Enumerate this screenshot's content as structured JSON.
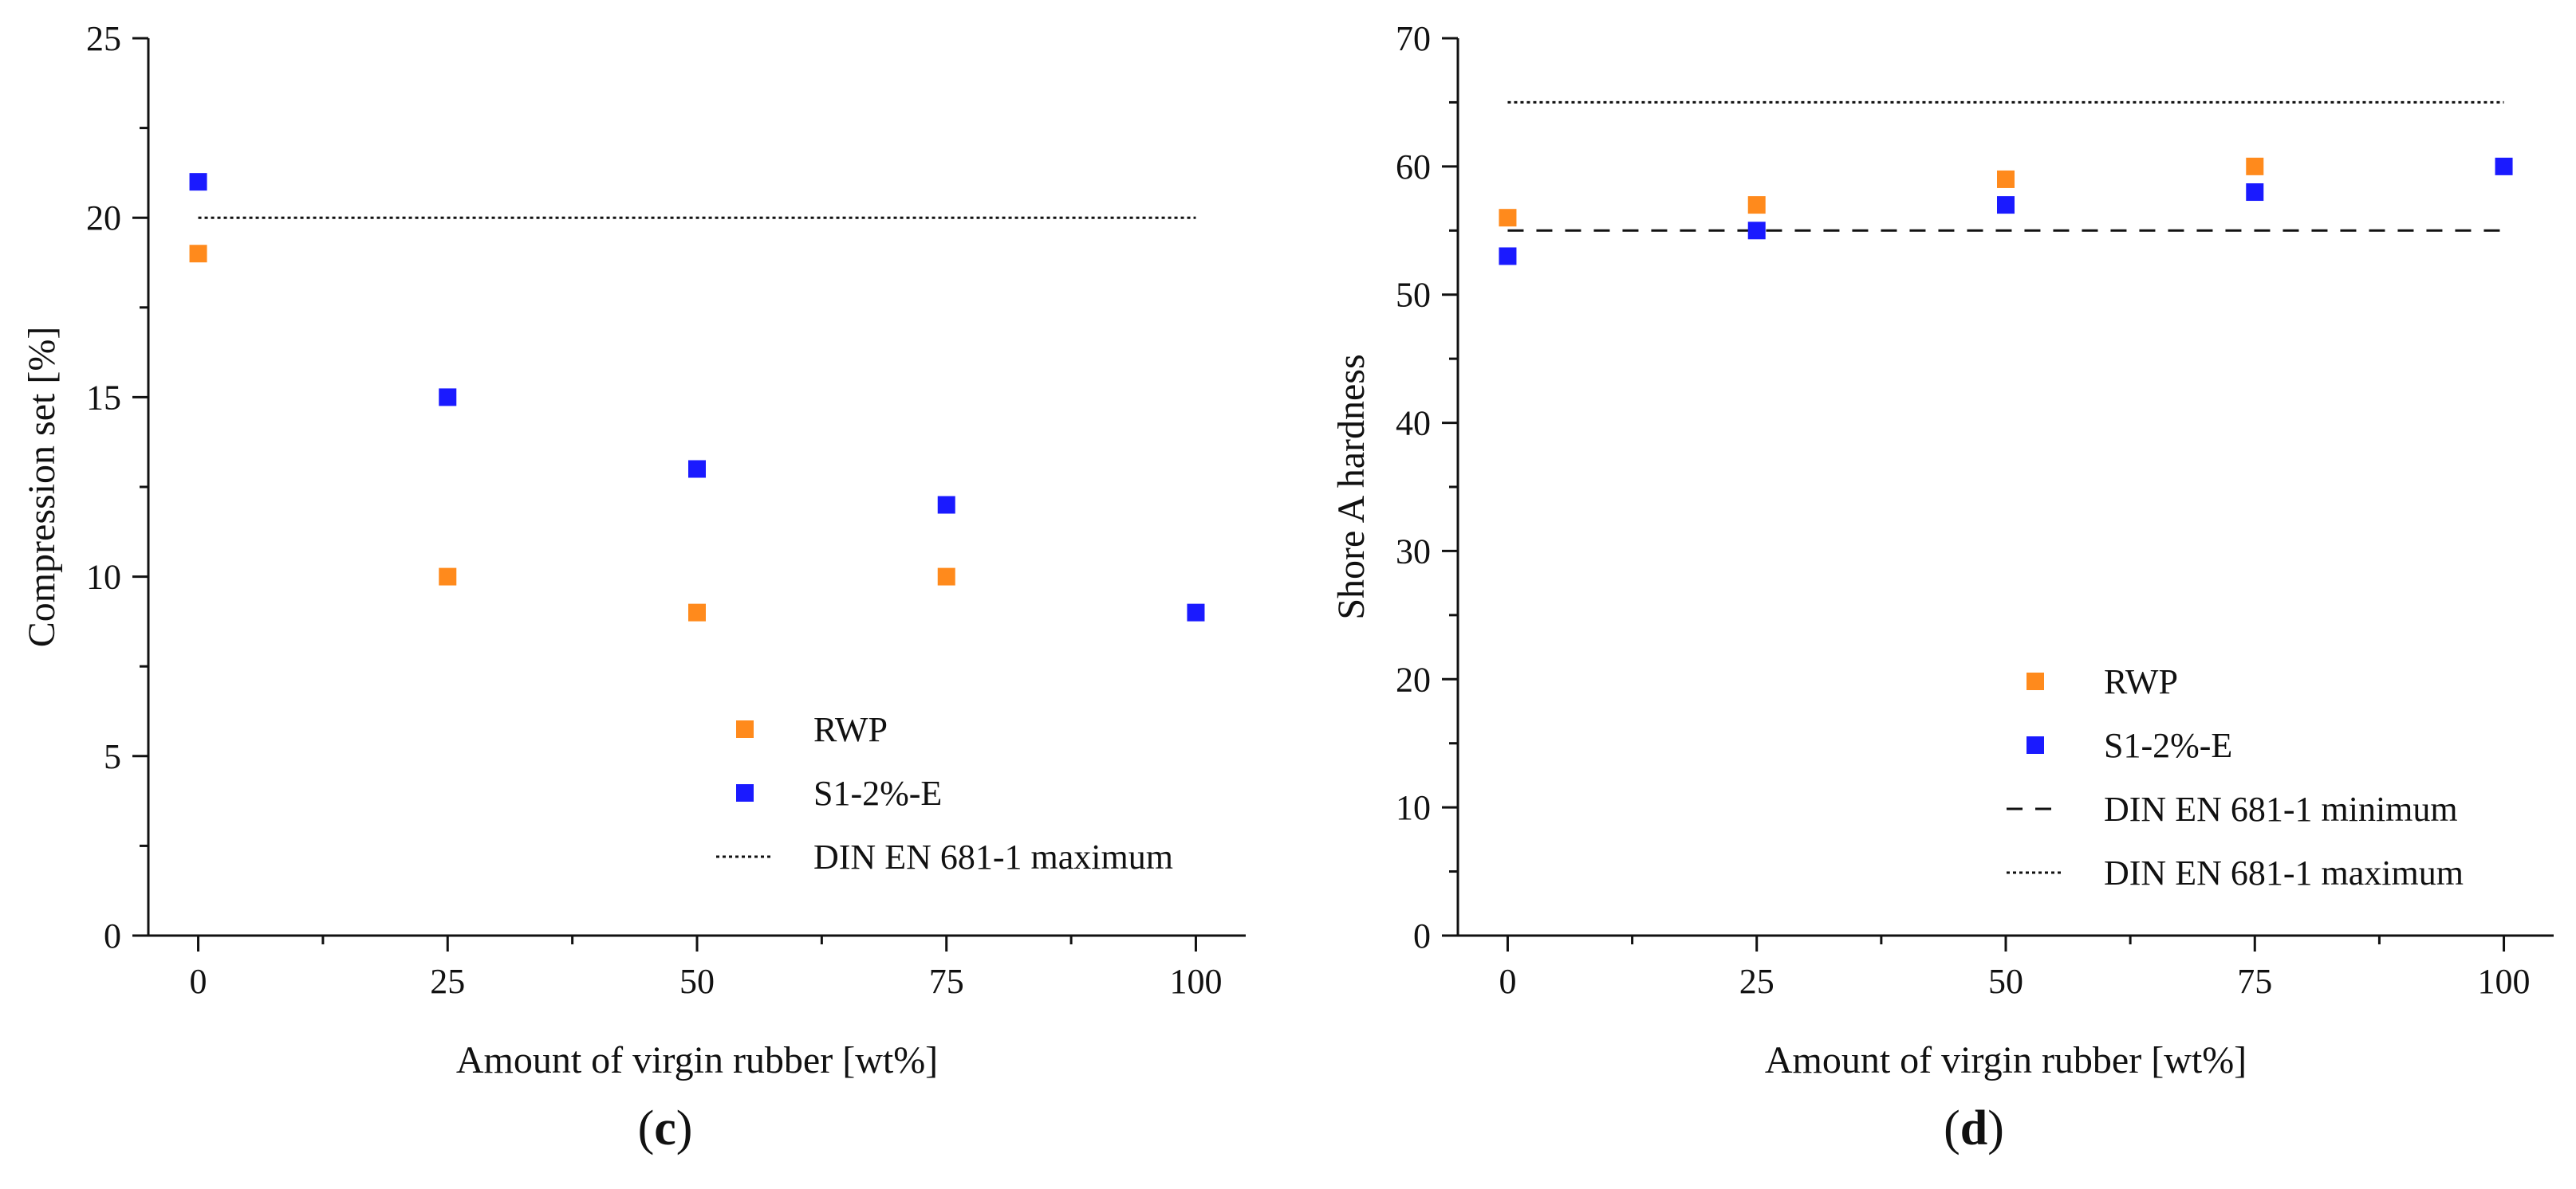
{
  "chart_data": [
    {
      "type": "scatter",
      "panel_label": "c",
      "xlabel": "Amount of virgin rubber [wt%]",
      "ylabel": "Compression set [%]",
      "xlim": [
        -5,
        105
      ],
      "ylim": [
        0,
        25
      ],
      "x_ticks": [
        0,
        25,
        50,
        75,
        100
      ],
      "y_ticks": [
        0,
        5,
        10,
        15,
        20,
        25
      ],
      "series": [
        {
          "name": "RWP",
          "color": "#ff8a1c",
          "marker": "square",
          "x": [
            0,
            25,
            50,
            75
          ],
          "y": [
            19,
            10,
            9,
            10
          ]
        },
        {
          "name": "S1-2%-E",
          "color": "#1a1aff",
          "marker": "square",
          "x": [
            0,
            25,
            50,
            75,
            100
          ],
          "y": [
            21,
            15,
            13,
            12,
            9
          ]
        }
      ],
      "reference_lines": [
        {
          "name": "DIN EN 681-1 maximum",
          "y": 20,
          "x_range": [
            0,
            100
          ],
          "style": "dotted"
        }
      ],
      "legend": [
        "RWP",
        "S1-2%-E",
        "DIN EN 681-1 maximum"
      ],
      "legend_position": "lower-right",
      "grid": false
    },
    {
      "type": "scatter",
      "panel_label": "d",
      "xlabel": "Amount of virgin rubber [wt%]",
      "ylabel": "Shore A hardness",
      "xlim": [
        -5,
        105
      ],
      "ylim": [
        0,
        70
      ],
      "x_ticks": [
        0,
        25,
        50,
        75,
        100
      ],
      "y_ticks": [
        0,
        10,
        20,
        30,
        40,
        50,
        60,
        70
      ],
      "series": [
        {
          "name": "RWP",
          "color": "#ff8a1c",
          "marker": "square",
          "x": [
            0,
            25,
            50,
            75
          ],
          "y": [
            56,
            57,
            59,
            60
          ]
        },
        {
          "name": "S1-2%-E",
          "color": "#1a1aff",
          "marker": "square",
          "x": [
            0,
            25,
            50,
            75,
            100
          ],
          "y": [
            53,
            55,
            57,
            58,
            60
          ]
        }
      ],
      "reference_lines": [
        {
          "name": "DIN EN 681-1 minimum",
          "y": 55,
          "x_range": [
            0,
            100
          ],
          "style": "dashed"
        },
        {
          "name": "DIN EN 681-1 maximum",
          "y": 65,
          "x_range": [
            0,
            100
          ],
          "style": "dotted"
        }
      ],
      "legend": [
        "RWP",
        "S1-2%-E",
        "DIN EN 681-1 minimum",
        "DIN EN 681-1 maximum"
      ],
      "legend_position": "lower-right",
      "grid": false
    }
  ]
}
